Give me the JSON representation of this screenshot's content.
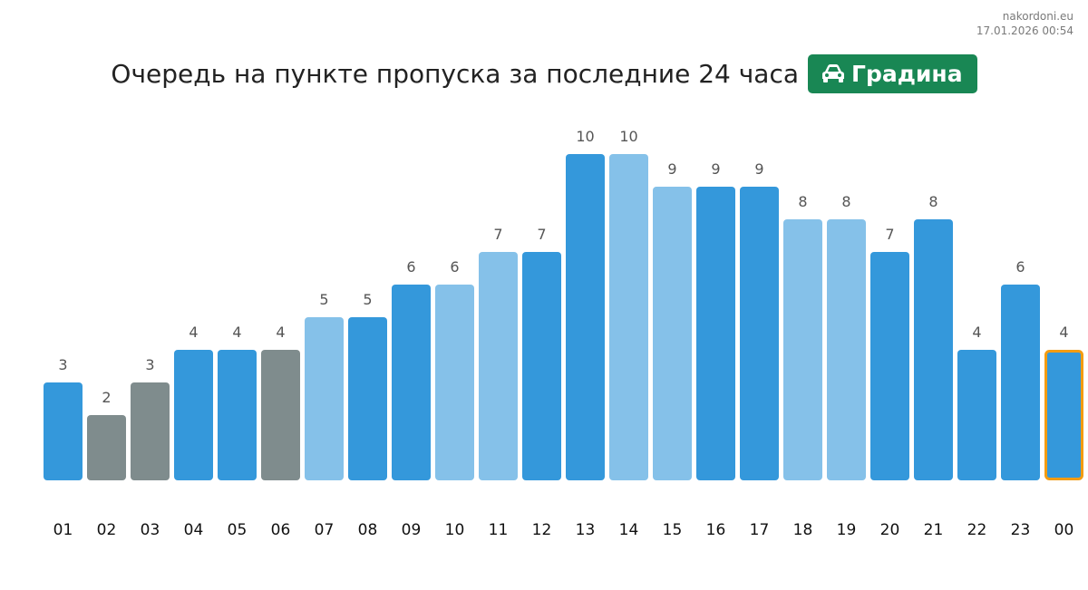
{
  "site": {
    "name": "nakordoni.eu",
    "timestamp": "17.01.2026 00:54"
  },
  "title": "Очередь на пункте пропуска за последние 24 часа",
  "badge": {
    "icon": "car-icon",
    "label": "Градина",
    "color": "#198754"
  },
  "colors": {
    "dark": "#3498db",
    "light": "#85c1e9",
    "gray": "#7f8c8d",
    "highlight": "#f39c12"
  },
  "chart_data": {
    "type": "bar",
    "categories": [
      "01",
      "02",
      "03",
      "04",
      "05",
      "06",
      "07",
      "08",
      "09",
      "10",
      "11",
      "12",
      "13",
      "14",
      "15",
      "16",
      "17",
      "18",
      "19",
      "20",
      "21",
      "22",
      "23",
      "00"
    ],
    "values": [
      3,
      2,
      3,
      4,
      4,
      4,
      5,
      5,
      6,
      6,
      7,
      7,
      10,
      10,
      9,
      9,
      9,
      8,
      8,
      7,
      8,
      4,
      6,
      4
    ],
    "bar_colors": [
      "dark",
      "gray",
      "gray",
      "dark",
      "dark",
      "gray",
      "light",
      "dark",
      "dark",
      "light",
      "light",
      "dark",
      "dark",
      "light",
      "light",
      "dark",
      "dark",
      "light",
      "light",
      "dark",
      "dark",
      "dark",
      "dark",
      "dark"
    ],
    "highlighted_category": "00",
    "ylim": [
      0,
      10
    ],
    "grid": false,
    "title": "",
    "xlabel": "",
    "ylabel": ""
  }
}
